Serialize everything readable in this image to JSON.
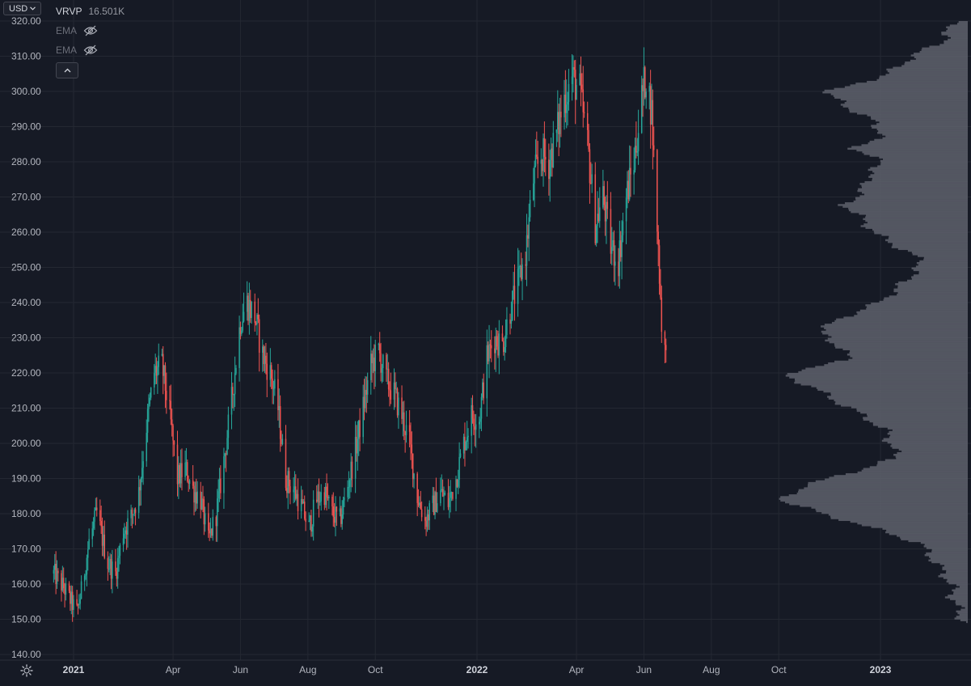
{
  "currency": {
    "label": "USD"
  },
  "legend": [
    {
      "name": "VRVP",
      "value": "16.501K",
      "hidden": false
    },
    {
      "name": "EMA",
      "value": "",
      "hidden": true
    },
    {
      "name": "EMA",
      "value": "",
      "hidden": true
    }
  ],
  "colors": {
    "background": "#161a25",
    "up": "#26a69a",
    "down": "#ef5350",
    "profile": "#5d606b",
    "grid": "#242832"
  },
  "icons": {
    "currency_chevron": "chevron-down-icon",
    "collapse": "chevron-up-icon",
    "settings": "gear-icon",
    "hidden": "eye-off-icon"
  },
  "chart_data": {
    "type": "candlestick",
    "y_ticks": [
      "140.00",
      "150.00",
      "160.00",
      "170.00",
      "180.00",
      "190.00",
      "200.00",
      "210.00",
      "220.00",
      "230.00",
      "240.00",
      "250.00",
      "260.00",
      "270.00",
      "280.00",
      "290.00",
      "300.00",
      "310.00",
      "320.00"
    ],
    "ylim": [
      139,
      321
    ],
    "x_ticks": [
      {
        "label": "2021",
        "date": "2021-01-01",
        "bold": true
      },
      {
        "label": "Apr",
        "date": "2021-04-01",
        "bold": false
      },
      {
        "label": "Jun",
        "date": "2021-06-01",
        "bold": false
      },
      {
        "label": "Aug",
        "date": "2021-08-01",
        "bold": false
      },
      {
        "label": "Oct",
        "date": "2021-10-01",
        "bold": false
      },
      {
        "label": "2022",
        "date": "2022-01-01",
        "bold": true
      },
      {
        "label": "Apr",
        "date": "2022-04-01",
        "bold": false
      },
      {
        "label": "Jun",
        "date": "2022-06-01",
        "bold": false
      },
      {
        "label": "Aug",
        "date": "2022-08-01",
        "bold": false
      },
      {
        "label": "Oct",
        "date": "2022-10-01",
        "bold": false
      },
      {
        "label": "2023",
        "date": "2023-01-01",
        "bold": true
      }
    ],
    "price_path": [
      [
        "2020-12-14",
        163
      ],
      [
        "2020-12-23",
        159
      ],
      [
        "2021-01-04",
        152
      ],
      [
        "2021-01-08",
        158
      ],
      [
        "2021-01-15",
        172
      ],
      [
        "2021-01-22",
        180
      ],
      [
        "2021-02-01",
        166
      ],
      [
        "2021-02-08",
        163
      ],
      [
        "2021-02-15",
        175
      ],
      [
        "2021-02-22",
        179
      ],
      [
        "2021-03-01",
        186
      ],
      [
        "2021-03-08",
        205
      ],
      [
        "2021-03-15",
        220
      ],
      [
        "2021-03-22",
        222
      ],
      [
        "2021-03-29",
        208
      ],
      [
        "2021-04-05",
        190
      ],
      [
        "2021-04-12",
        193
      ],
      [
        "2021-04-19",
        187
      ],
      [
        "2021-04-26",
        184
      ],
      [
        "2021-05-03",
        172
      ],
      [
        "2021-05-10",
        180
      ],
      [
        "2021-05-17",
        195
      ],
      [
        "2021-05-24",
        212
      ],
      [
        "2021-06-01",
        235
      ],
      [
        "2021-06-07",
        240
      ],
      [
        "2021-06-14",
        236
      ],
      [
        "2021-06-21",
        225
      ],
      [
        "2021-06-28",
        220
      ],
      [
        "2021-07-05",
        210
      ],
      [
        "2021-07-12",
        190
      ],
      [
        "2021-07-19",
        187
      ],
      [
        "2021-07-26",
        182
      ],
      [
        "2021-08-02",
        176
      ],
      [
        "2021-08-09",
        184
      ],
      [
        "2021-08-16",
        186
      ],
      [
        "2021-08-23",
        180
      ],
      [
        "2021-08-30",
        178
      ],
      [
        "2021-09-06",
        188
      ],
      [
        "2021-09-13",
        198
      ],
      [
        "2021-09-20",
        210
      ],
      [
        "2021-09-27",
        222
      ],
      [
        "2021-10-04",
        226
      ],
      [
        "2021-10-11",
        218
      ],
      [
        "2021-10-18",
        214
      ],
      [
        "2021-10-25",
        208
      ],
      [
        "2021-11-01",
        200
      ],
      [
        "2021-11-08",
        185
      ],
      [
        "2021-11-15",
        178
      ],
      [
        "2021-11-22",
        182
      ],
      [
        "2021-11-29",
        186
      ],
      [
        "2021-12-06",
        183
      ],
      [
        "2021-12-13",
        190
      ],
      [
        "2021-12-20",
        200
      ],
      [
        "2021-12-27",
        208
      ],
      [
        "2022-01-03",
        207
      ],
      [
        "2022-01-10",
        224
      ],
      [
        "2022-01-17",
        230
      ],
      [
        "2022-01-24",
        228
      ],
      [
        "2022-01-31",
        238
      ],
      [
        "2022-02-07",
        245
      ],
      [
        "2022-02-14",
        254
      ],
      [
        "2022-02-21",
        275
      ],
      [
        "2022-02-28",
        282
      ],
      [
        "2022-03-07",
        280
      ],
      [
        "2022-03-14",
        288
      ],
      [
        "2022-03-21",
        298
      ],
      [
        "2022-03-28",
        304
      ],
      [
        "2022-04-04",
        300
      ],
      [
        "2022-04-11",
        285
      ],
      [
        "2022-04-18",
        262
      ],
      [
        "2022-04-25",
        270
      ],
      [
        "2022-05-02",
        256
      ],
      [
        "2022-05-09",
        252
      ],
      [
        "2022-05-16",
        270
      ],
      [
        "2022-05-23",
        280
      ],
      [
        "2022-05-30",
        298
      ],
      [
        "2022-06-03",
        305
      ],
      [
        "2022-06-08",
        294
      ],
      [
        "2022-06-13",
        262
      ],
      [
        "2022-06-17",
        235
      ],
      [
        "2022-06-22",
        221
      ]
    ],
    "volume_profile": [
      [
        320,
        20
      ],
      [
        315,
        28
      ],
      [
        310,
        70
      ],
      [
        305,
        100
      ],
      [
        300,
        175
      ],
      [
        296,
        150
      ],
      [
        292,
        118
      ],
      [
        288,
        105
      ],
      [
        284,
        140
      ],
      [
        280,
        105
      ],
      [
        276,
        125
      ],
      [
        272,
        130
      ],
      [
        268,
        152
      ],
      [
        264,
        130
      ],
      [
        260,
        115
      ],
      [
        256,
        85
      ],
      [
        252,
        55
      ],
      [
        248,
        70
      ],
      [
        244,
        88
      ],
      [
        240,
        112
      ],
      [
        236,
        155
      ],
      [
        232,
        185
      ],
      [
        228,
        160
      ],
      [
        224,
        145
      ],
      [
        220,
        230
      ],
      [
        216,
        190
      ],
      [
        212,
        160
      ],
      [
        208,
        128
      ],
      [
        204,
        102
      ],
      [
        200,
        95
      ],
      [
        196,
        88
      ],
      [
        192,
        145
      ],
      [
        188,
        205
      ],
      [
        184,
        230
      ],
      [
        180,
        175
      ],
      [
        176,
        115
      ],
      [
        172,
        60
      ],
      [
        168,
        45
      ],
      [
        164,
        32
      ],
      [
        160,
        20
      ],
      [
        156,
        18
      ],
      [
        152,
        10
      ],
      [
        149,
        5
      ]
    ]
  }
}
